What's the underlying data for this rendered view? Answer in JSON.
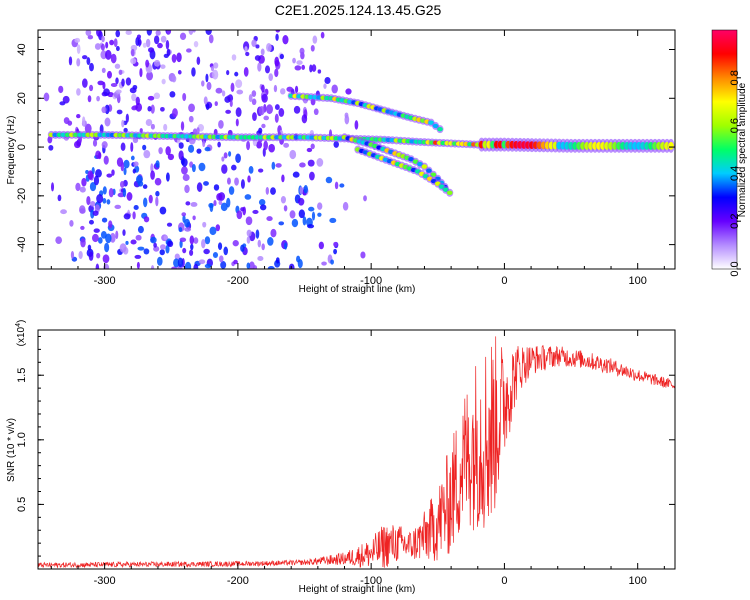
{
  "figure": {
    "title": "C2E1.2025.124.13.45.G25"
  },
  "chart_data": [
    {
      "type": "heatmap",
      "xlabel": "Height of straight line (km)",
      "ylabel": "Frequency (Hz)",
      "xlim": [
        -350,
        128
      ],
      "ylim": [
        -50,
        48
      ],
      "x_ticks": [
        -300,
        -200,
        -100,
        0,
        100
      ],
      "x_tick_labels": [
        "-300",
        "-200",
        "-100",
        "0",
        "100"
      ],
      "y_ticks": [
        -40,
        -20,
        0,
        20,
        40
      ],
      "y_tick_labels": [
        "-40",
        "-20",
        "0",
        "20",
        "40"
      ],
      "colorbar": {
        "label": "Normalized spectral amplitude",
        "range": [
          0,
          1
        ],
        "ticks": [
          0,
          0.2,
          0.4,
          0.6,
          0.8
        ],
        "tick_labels": [
          "0.0",
          "0.2",
          "0.4",
          "0.6",
          "0.8"
        ],
        "colors": [
          "#ffffff",
          "#b48cff",
          "#6600ff",
          "#0000ff",
          "#00ccff",
          "#00ff66",
          "#a0ff00",
          "#ffff00",
          "#ff8800",
          "#ff0000",
          "#ff0066"
        ]
      },
      "tracks": [
        {
          "name_hidden": true,
          "points": [
            [
              -340,
              5
            ],
            [
              -300,
              5
            ],
            [
              -250,
              4.5
            ],
            [
              -200,
              4
            ],
            [
              -150,
              4
            ],
            [
              -120,
              3.5
            ],
            [
              -90,
              3
            ],
            [
              -60,
              2
            ],
            [
              -40,
              1.5
            ],
            [
              -20,
              1
            ],
            [
              0,
              1
            ],
            [
              50,
              0.5
            ],
            [
              128,
              0.5
            ]
          ]
        },
        {
          "name_hidden": true,
          "points": [
            [
              -160,
              21
            ],
            [
              -130,
              20
            ],
            [
              -110,
              18
            ],
            [
              -90,
              15
            ],
            [
              -70,
              12
            ],
            [
              -55,
              10
            ],
            [
              -45,
              6
            ]
          ]
        },
        {
          "name_hidden": true,
          "points": [
            [
              -120,
              4
            ],
            [
              -100,
              1
            ],
            [
              -85,
              -2
            ],
            [
              -70,
              -5
            ],
            [
              -60,
              -8
            ],
            [
              -50,
              -13
            ],
            [
              -42,
              -18
            ]
          ]
        },
        {
          "name_hidden": true,
          "points": [
            [
              -110,
              -1
            ],
            [
              -95,
              -4
            ],
            [
              -80,
              -7
            ],
            [
              -65,
              -10
            ],
            [
              -50,
              -15
            ],
            [
              -38,
              -20
            ]
          ]
        }
      ],
      "scatter_region": {
        "x": [
          -350,
          -150
        ],
        "y": [
          -50,
          48
        ],
        "level": 0.25
      }
    },
    {
      "type": "line",
      "xlabel": "Height of straight line (km)",
      "ylabel": "SNR (10 * v/v)",
      "y_multiplier_label": "(x10",
      "y_multiplier_exp": "4",
      "y_multiplier_close": ")",
      "xlim": [
        -350,
        128
      ],
      "ylim": [
        0,
        1.85
      ],
      "x_ticks": [
        -300,
        -200,
        -100,
        0,
        100
      ],
      "x_tick_labels": [
        "-300",
        "-200",
        "-100",
        "0",
        "100"
      ],
      "y_ticks": [
        0.5,
        1.0,
        1.5
      ],
      "y_tick_labels": [
        "0.5",
        "1.0",
        "1.5"
      ],
      "color": "#ee2222",
      "envelope": {
        "x": [
          -350,
          -200,
          -150,
          -120,
          -100,
          -90,
          -80,
          -70,
          -60,
          -50,
          -40,
          -30,
          -20,
          -10,
          0,
          10,
          20,
          40,
          60,
          80,
          100,
          128
        ],
        "mean": [
          0.03,
          0.04,
          0.05,
          0.08,
          0.12,
          0.18,
          0.2,
          0.18,
          0.25,
          0.35,
          0.55,
          0.85,
          1.0,
          1.05,
          1.3,
          1.55,
          1.62,
          1.65,
          1.62,
          1.57,
          1.5,
          1.42
        ],
        "spread": [
          0.02,
          0.02,
          0.02,
          0.05,
          0.12,
          0.18,
          0.15,
          0.12,
          0.2,
          0.3,
          0.45,
          0.55,
          0.7,
          0.8,
          0.45,
          0.2,
          0.12,
          0.08,
          0.07,
          0.06,
          0.05,
          0.04
        ]
      }
    }
  ]
}
